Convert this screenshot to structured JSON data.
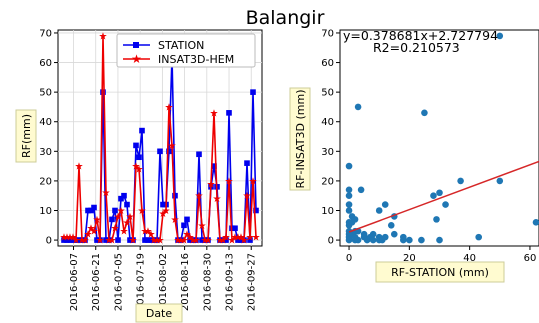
{
  "figure": {
    "title": "Balangir"
  },
  "chart_data": [
    {
      "type": "line",
      "xlabel": "Date",
      "ylabel": "RF(mm)",
      "ylim": [
        -2,
        71
      ],
      "yticks": [
        0,
        10,
        20,
        30,
        40,
        50,
        60,
        70
      ],
      "xticks": [
        "2016-06-07",
        "2016-06-21",
        "2016-07-05",
        "2016-07-19",
        "2016-08-02",
        "2016-08-16",
        "2016-08-30",
        "2016-09-13",
        "2016-09-27"
      ],
      "x_start": "2016-06-01",
      "x_end": "2016-09-30",
      "grid": true,
      "legend": "top-right",
      "series": [
        {
          "name": "STATION",
          "color": "#0000ee",
          "marker": "square",
          "values": [
            0,
            0,
            0,
            0,
            0,
            0,
            0,
            0,
            10,
            10,
            11,
            0,
            0,
            50,
            0,
            0,
            7,
            10,
            0,
            14,
            15,
            12,
            0,
            0,
            32,
            28,
            37,
            0,
            0,
            0,
            0,
            0,
            30,
            12,
            12,
            30,
            62,
            15,
            0,
            0,
            5,
            7,
            0,
            0,
            0,
            29,
            0,
            0,
            0,
            18,
            25,
            18,
            0,
            0,
            0,
            43,
            4,
            4,
            0,
            0,
            0,
            26,
            0,
            50,
            10
          ]
        },
        {
          "name": "INSAT3D-HEM",
          "color": "#ee0000",
          "marker": "star",
          "values": [
            1,
            1,
            1,
            1,
            0,
            25,
            0,
            0,
            2,
            4,
            3,
            7,
            0,
            69,
            16,
            0,
            0,
            4,
            8,
            10,
            3,
            6,
            8,
            0,
            25,
            24,
            10,
            3,
            3,
            2,
            0,
            0,
            0,
            9,
            10,
            45,
            32,
            7,
            0,
            0,
            0,
            2,
            1,
            0,
            0,
            15,
            5,
            0,
            0,
            19,
            43,
            14,
            0,
            0,
            1,
            20,
            0,
            1,
            1,
            1,
            0,
            15,
            1,
            20,
            1
          ]
        }
      ]
    },
    {
      "type": "scatter",
      "xlabel": "RF-STATION (mm)",
      "ylabel": "RF-INSAT3D (mm)",
      "xlim": [
        -3,
        63
      ],
      "ylim": [
        -2,
        71
      ],
      "xticks": [
        0,
        20,
        40,
        60
      ],
      "yticks": [
        0,
        10,
        20,
        30,
        40,
        50,
        60,
        70
      ],
      "annotation": "y=0.378681x+2.727794",
      "r2_text": "R2=0.210573",
      "slope": 0.378681,
      "intercept": 2.727794,
      "point_color": "#1f77b4",
      "line_color": "#d62728",
      "points": [
        [
          0,
          25
        ],
        [
          0,
          17
        ],
        [
          0,
          15
        ],
        [
          0,
          12
        ],
        [
          0,
          10
        ],
        [
          0,
          6
        ],
        [
          0,
          5
        ],
        [
          0,
          3
        ],
        [
          0,
          2
        ],
        [
          0,
          1
        ],
        [
          0,
          0
        ],
        [
          1,
          2
        ],
        [
          1,
          8
        ],
        [
          1,
          6
        ],
        [
          2,
          0
        ],
        [
          2,
          1
        ],
        [
          2,
          3
        ],
        [
          2,
          7
        ],
        [
          3,
          45
        ],
        [
          3,
          3
        ],
        [
          3,
          0
        ],
        [
          4,
          17
        ],
        [
          5,
          2
        ],
        [
          5,
          1
        ],
        [
          6,
          0
        ],
        [
          7,
          1
        ],
        [
          8,
          0
        ],
        [
          8,
          2
        ],
        [
          10,
          1
        ],
        [
          10,
          0
        ],
        [
          10,
          10
        ],
        [
          11,
          0
        ],
        [
          12,
          1
        ],
        [
          12,
          12
        ],
        [
          14,
          5
        ],
        [
          15,
          8
        ],
        [
          15,
          2
        ],
        [
          18,
          0
        ],
        [
          18,
          1
        ],
        [
          20,
          0
        ],
        [
          24,
          0
        ],
        [
          25,
          43
        ],
        [
          28,
          15
        ],
        [
          29,
          7
        ],
        [
          30,
          16
        ],
        [
          30,
          0
        ],
        [
          32,
          12
        ],
        [
          37,
          20
        ],
        [
          43,
          1
        ],
        [
          50,
          20
        ],
        [
          50,
          69
        ],
        [
          62,
          6
        ]
      ]
    }
  ]
}
